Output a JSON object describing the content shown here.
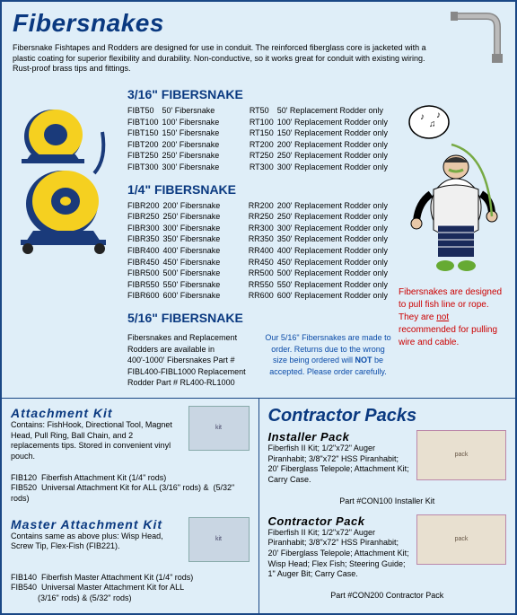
{
  "title": "Fibersnakes",
  "intro": "Fibersnake Fishtapes and Rodders are designed for use in conduit. The reinforced fiberglass core is jacketed with a plastic coating for superior flexibility and durability. Non-conductive, so it works great for conduit with existing wiring. Rust-proof brass tips and fittings.",
  "sections": {
    "s316": {
      "title": "3/16\" FIBERSNAKE",
      "left": [
        {
          "p": "FIBT50",
          "d": "50' Fibersnake"
        },
        {
          "p": "FIBT100",
          "d": "100' Fibersnake"
        },
        {
          "p": "FIBT150",
          "d": "150' Fibersnake"
        },
        {
          "p": "FIBT200",
          "d": "200' Fibersnake"
        },
        {
          "p": "FIBT250",
          "d": "250' Fibersnake"
        },
        {
          "p": "FIBT300",
          "d": "300' Fibersnake"
        }
      ],
      "right": [
        {
          "p": "RT50",
          "d": "50' Replacement Rodder only"
        },
        {
          "p": "RT100",
          "d": "100' Replacement Rodder only"
        },
        {
          "p": "RT150",
          "d": "150' Replacement Rodder only"
        },
        {
          "p": "RT200",
          "d": "200' Replacement Rodder only"
        },
        {
          "p": "RT250",
          "d": "250' Replacement Rodder only"
        },
        {
          "p": "RT300",
          "d": "300' Replacement Rodder only"
        }
      ]
    },
    "s14": {
      "title": "1/4\" FIBERSNAKE",
      "left": [
        {
          "p": "FIBR200",
          "d": "200' Fibersnake"
        },
        {
          "p": "FIBR250",
          "d": "250' Fibersnake"
        },
        {
          "p": "FIBR300",
          "d": "300' Fibersnake"
        },
        {
          "p": "FIBR350",
          "d": "350' Fibersnake"
        },
        {
          "p": "FIBR400",
          "d": "400' Fibersnake"
        },
        {
          "p": "FIBR450",
          "d": "450' Fibersnake"
        },
        {
          "p": "FIBR500",
          "d": "500' Fibersnake"
        },
        {
          "p": "FIBR550",
          "d": "550' Fibersnake"
        },
        {
          "p": "FIBR600",
          "d": "600' Fibersnake"
        }
      ],
      "right": [
        {
          "p": "RR200",
          "d": "200' Replacement Rodder only"
        },
        {
          "p": "RR250",
          "d": "250' Replacement Rodder only"
        },
        {
          "p": "RR300",
          "d": "300' Replacement Rodder only"
        },
        {
          "p": "RR350",
          "d": "350' Replacement Rodder only"
        },
        {
          "p": "RR400",
          "d": "400' Replacement Rodder only"
        },
        {
          "p": "RR450",
          "d": "450' Replacement Rodder only"
        },
        {
          "p": "RR500",
          "d": "500' Replacement Rodder only"
        },
        {
          "p": "RR550",
          "d": "550' Replacement Rodder only"
        },
        {
          "p": "RR600",
          "d": "600' Replacement Rodder only"
        }
      ]
    },
    "s516": {
      "title": "5/16\" FIBERSNAKE",
      "note": "Fibersnakes and Replacement Rodders are available in 400'-1000' Fibersnakes Part # FIBL400-FIBL1000 Replacement Rodder Part # RL400-RL1000",
      "order_a": "Our 5/16\" Fibersnakes are made to order. Returns due to the wrong size being ordered will ",
      "order_b": "NOT",
      "order_c": " be accepted. Please order carefully."
    }
  },
  "warn": {
    "a": "Fibersnakes are designed to pull fish line or rope.",
    "b": "They are ",
    "c": "not",
    "d": " recommended for pulling wire and cable."
  },
  "attachment": {
    "title": "Attachment Kit",
    "desc": "Contains: FishHook, Directional Tool, Magnet Head, Pull Ring, Ball Chain, and 2 replacements tips. Stored in convenient vinyl pouch.",
    "parts": "FIB120  Fiberfish Attachment Kit (1/4\" rods)\nFIB520  Universal Attachment Kit for ALL (3/16\" rods) &  (5/32\" rods)"
  },
  "master": {
    "title": "Master Attachment Kit",
    "desc": "Contains same as above plus: Wisp Head, Screw Tip, Flex-Fish (FIB221).",
    "parts": "FIB140  Fiberfish Master Attachment Kit (1/4\" rods)\nFIB540  Universal Master Attachment Kit for ALL\n            (3/16\" rods) & (5/32\" rods)"
  },
  "cp_title": "Contractor Packs",
  "packs": {
    "installer": {
      "title": "Installer Pack",
      "desc": "Fiberfish II Kit; 1/2\"x72\" Auger Piranhabit; 3/8\"x72\" HSS Piranhabit; 20' Fiberglass Telepole; Attachment Kit; Carry Case.",
      "part": "Part #CON100    Installer Kit"
    },
    "contractor": {
      "title": "Contractor Pack",
      "desc": "Fiberfish II Kit; 1/2\"x72\" Auger Piranhabit; 3/8\"x72\" HSS Piranhabit; 20' Fiberglass Telepole; Attachment Kit; Wisp Head; Flex Fish; Steering Guide; 1\" Auger Bit; Carry Case.",
      "part": "Part #CON200    Contractor Pack"
    }
  }
}
